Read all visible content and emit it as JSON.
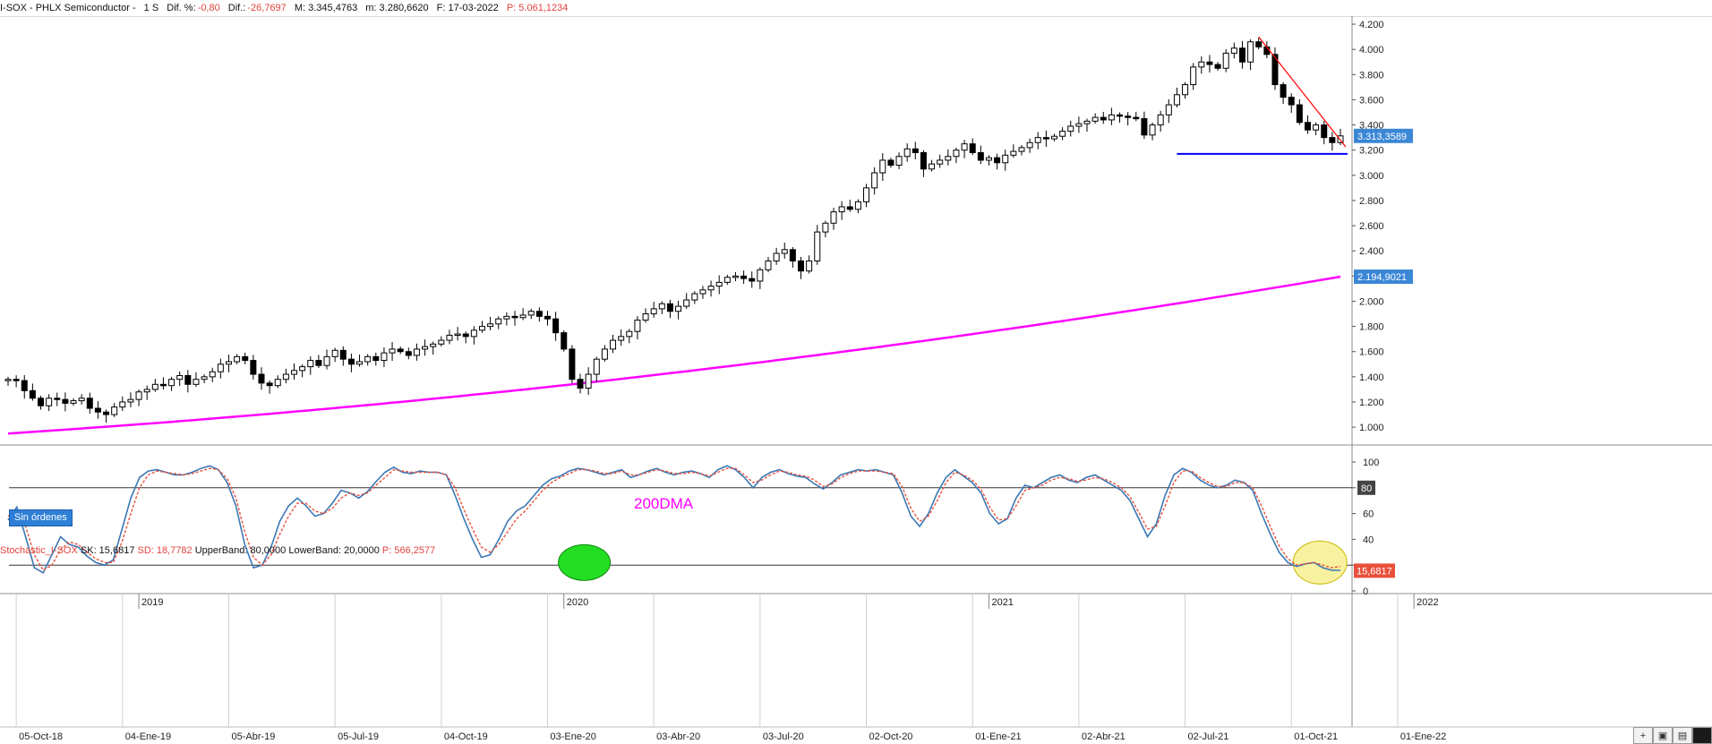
{
  "header": {
    "symbol": "I-SOX - PHLX Semiconductor -",
    "period": "1 S",
    "dif_pct_label": "Dif. %:",
    "dif_pct_value": "-0,80",
    "dif_label": "Dif.:",
    "dif_value": "-26,7697",
    "max_label": "M: 3.345,4763",
    "min_label": "m: 3.280,6620",
    "date_label": "F: 17-03-2022",
    "p_label": "P: 5.061,1234"
  },
  "sin_ordenes": "Sin órdenes",
  "annotation_200dma": "200DMA",
  "stoch_header": {
    "name": "Stochastic_I-SOX",
    "sk": "SK: 15,6817",
    "sd": "SD: 18,7782",
    "upper": "UpperBand: 80,0000",
    "lower": "LowerBand: 20,0000",
    "p": "P: 566,2577"
  },
  "colors": {
    "candle": "#000000",
    "ma": "#ff00ff",
    "trendline": "#ff0000",
    "support": "#0000ff",
    "sk": "#3c78b4",
    "sd": "#e8503c",
    "price_tag": "#3b87d6",
    "stoch_tag": "#e8503c",
    "green_ellipse": "#22dd22",
    "yellow_ellipse": "#f8f2a0"
  },
  "chart_data": [
    {
      "type": "candlestick",
      "title": "I-SOX - PHLX Semiconductor",
      "ylim": [
        880,
        4250
      ],
      "y_ticks": [
        "1.000",
        "1.200",
        "1.400",
        "1.600",
        "1.800",
        "2.000",
        "2.200",
        "2.400",
        "2.600",
        "2.800",
        "3.000",
        "3.200",
        "3.400",
        "3.600",
        "3.800",
        "4.000",
        "4.200"
      ],
      "y_tick_values": [
        1000,
        1200,
        1400,
        1600,
        1800,
        2000,
        2200,
        2400,
        2600,
        2800,
        3000,
        3200,
        3400,
        3600,
        3800,
        4000,
        4200
      ],
      "x_labels": [
        {
          "week": 1,
          "label": "05-Oct-18"
        },
        {
          "week": 14,
          "label": "04-Ene-19"
        },
        {
          "week": 27,
          "label": "05-Abr-19"
        },
        {
          "week": 40,
          "label": "05-Jul-19"
        },
        {
          "week": 53,
          "label": "04-Oct-19"
        },
        {
          "week": 66,
          "label": "03-Ene-20"
        },
        {
          "week": 79,
          "label": "03-Abr-20"
        },
        {
          "week": 92,
          "label": "03-Jul-20"
        },
        {
          "week": 105,
          "label": "02-Oct-20"
        },
        {
          "week": 118,
          "label": "01-Ene-21"
        },
        {
          "week": 131,
          "label": "02-Abr-21"
        },
        {
          "week": 144,
          "label": "02-Jul-21"
        },
        {
          "week": 157,
          "label": "01-Oct-21"
        },
        {
          "week": 170,
          "label": "01-Ene-22"
        }
      ],
      "year_labels": [
        {
          "week": 16,
          "label": "2019"
        },
        {
          "week": 68,
          "label": "2020"
        },
        {
          "week": 120,
          "label": "2021"
        },
        {
          "week": 172,
          "label": "2022"
        }
      ],
      "close": [
        1380,
        1370,
        1290,
        1230,
        1170,
        1230,
        1220,
        1190,
        1210,
        1230,
        1150,
        1120,
        1100,
        1160,
        1200,
        1220,
        1280,
        1300,
        1340,
        1330,
        1380,
        1410,
        1340,
        1380,
        1400,
        1440,
        1500,
        1520,
        1560,
        1530,
        1420,
        1350,
        1330,
        1380,
        1420,
        1450,
        1480,
        1530,
        1490,
        1560,
        1610,
        1540,
        1500,
        1520,
        1560,
        1530,
        1590,
        1620,
        1600,
        1570,
        1620,
        1640,
        1660,
        1690,
        1730,
        1740,
        1720,
        1770,
        1800,
        1820,
        1860,
        1880,
        1870,
        1890,
        1920,
        1880,
        1860,
        1750,
        1620,
        1380,
        1310,
        1420,
        1540,
        1620,
        1690,
        1720,
        1760,
        1850,
        1900,
        1940,
        1980,
        1920,
        1960,
        2010,
        2060,
        2090,
        2120,
        2150,
        2190,
        2200,
        2180,
        2160,
        2250,
        2320,
        2380,
        2410,
        2320,
        2240,
        2320,
        2550,
        2620,
        2710,
        2750,
        2730,
        2790,
        2900,
        3020,
        3120,
        3080,
        3150,
        3210,
        3180,
        3050,
        3090,
        3120,
        3150,
        3200,
        3250,
        3180,
        3120,
        3140,
        3100,
        3160,
        3190,
        3220,
        3260,
        3300,
        3290,
        3310,
        3350,
        3390,
        3410,
        3430,
        3460,
        3440,
        3480,
        3470,
        3460,
        3450,
        3320,
        3400,
        3480,
        3560,
        3640,
        3720,
        3860,
        3900,
        3880,
        3850,
        3970,
        4010,
        3900,
        4060,
        4020,
        3960,
        3720,
        3620,
        3560,
        3420,
        3360,
        3400,
        3300,
        3260,
        3313
      ],
      "ma200_start": 950,
      "ma200_end": 2195,
      "last_price": "3.313,3589",
      "ma_last": "2.194,9021"
    },
    {
      "type": "line",
      "title": "Stochastic_I-SOX",
      "ylim": [
        0,
        100
      ],
      "y_ticks": [
        "0",
        "20",
        "40",
        "60",
        "80",
        "100"
      ],
      "y_tick_values": [
        0,
        20,
        40,
        60,
        80,
        100
      ],
      "bands": {
        "upper": 80,
        "lower": 20
      },
      "series": [
        {
          "name": "SK",
          "values": [
            55,
            65,
            42,
            18,
            14,
            28,
            42,
            36,
            34,
            27,
            22,
            20,
            24,
            48,
            72,
            88,
            93,
            94,
            92,
            90,
            90,
            92,
            95,
            97,
            94,
            84,
            66,
            36,
            18,
            20,
            34,
            54,
            66,
            72,
            66,
            58,
            60,
            68,
            78,
            76,
            72,
            77,
            85,
            92,
            96,
            92,
            91,
            93,
            92,
            92,
            90,
            74,
            56,
            40,
            26,
            28,
            40,
            54,
            62,
            66,
            74,
            82,
            87,
            89,
            93,
            95,
            94,
            92,
            90,
            92,
            94,
            88,
            90,
            93,
            95,
            92,
            90,
            92,
            93,
            91,
            88,
            94,
            97,
            94,
            88,
            80,
            88,
            92,
            94,
            91,
            89,
            88,
            83,
            79,
            84,
            90,
            92,
            94,
            93,
            94,
            92,
            90,
            76,
            58,
            50,
            60,
            76,
            88,
            94,
            89,
            84,
            76,
            60,
            52,
            56,
            72,
            82,
            80,
            84,
            88,
            90,
            86,
            84,
            88,
            90,
            86,
            82,
            78,
            70,
            56,
            42,
            52,
            74,
            90,
            95,
            92,
            86,
            82,
            80,
            82,
            86,
            84,
            78,
            60,
            44,
            30,
            22,
            19,
            21,
            22,
            18,
            16,
            16
          ]
        },
        {
          "name": "SD",
          "values": [
            58,
            62,
            50,
            28,
            16,
            20,
            32,
            38,
            36,
            30,
            25,
            22,
            22,
            38,
            60,
            80,
            90,
            93,
            92,
            91,
            90,
            91,
            93,
            95,
            94,
            87,
            72,
            46,
            26,
            20,
            28,
            44,
            58,
            68,
            68,
            62,
            60,
            64,
            72,
            76,
            74,
            76,
            82,
            88,
            94,
            93,
            92,
            92,
            92,
            92,
            90,
            80,
            63,
            48,
            34,
            30,
            36,
            46,
            56,
            62,
            70,
            78,
            84,
            88,
            91,
            94,
            94,
            93,
            91,
            91,
            93,
            90,
            90,
            92,
            94,
            93,
            91,
            91,
            92,
            91,
            89,
            92,
            95,
            95,
            90,
            84,
            86,
            90,
            93,
            92,
            90,
            89,
            86,
            81,
            83,
            88,
            91,
            93,
            93,
            93,
            92,
            91,
            81,
            64,
            54,
            58,
            70,
            84,
            92,
            90,
            86,
            79,
            65,
            55,
            56,
            66,
            78,
            80,
            82,
            86,
            88,
            87,
            85,
            86,
            88,
            87,
            84,
            80,
            73,
            61,
            48,
            50,
            66,
            84,
            93,
            93,
            88,
            84,
            81,
            81,
            84,
            84,
            80,
            66,
            50,
            35,
            25,
            20,
            21,
            22,
            20,
            18,
            19
          ]
        }
      ],
      "last_sk": "15,6817"
    }
  ]
}
